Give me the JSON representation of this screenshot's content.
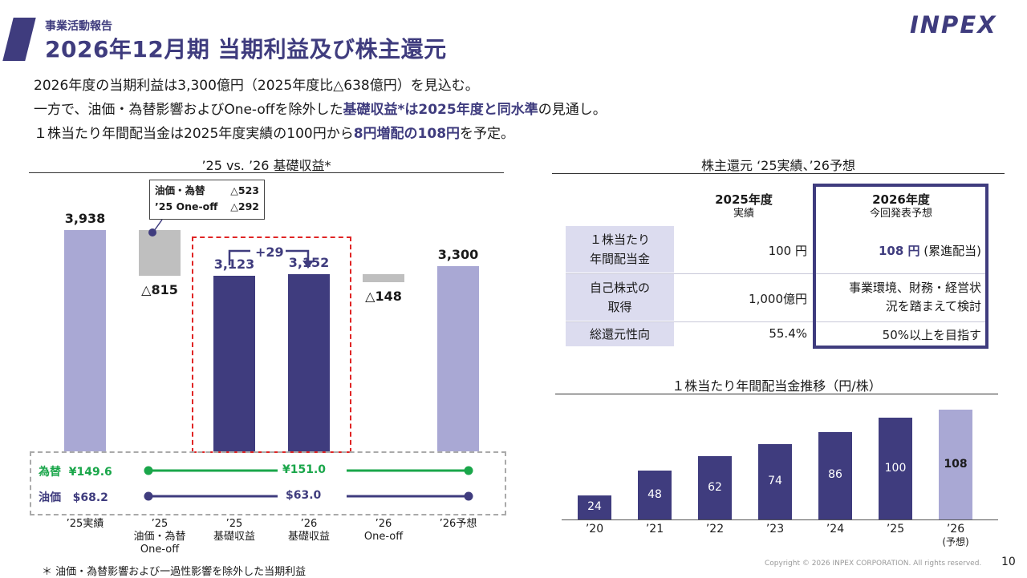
{
  "header": {
    "section_label": "事業活動報告",
    "page_title": "2026年12月期 当期利益及び株主還元",
    "logo_text": "INPEX"
  },
  "intro": {
    "line1": "2026年度の当期利益は3,300億円（2025年度比△638億円）を見込む。",
    "line2_a": "一方で、油価・為替影響およびOne-offを除外した",
    "line2_b": "基礎収益*は2025年度と同水準",
    "line2_c": "の見通し。",
    "line3_a": "１株当たり年間配当金は2025年度実績の100円から",
    "line3_b": "8円増配の108円",
    "line3_c": "を予定。"
  },
  "colors": {
    "brand": "#3f3c7e",
    "light_bar": "#a9a8d4",
    "grey_bar": "#bfbfbf",
    "fx_green": "#1aa64a",
    "oil_navy": "#3f3c7e",
    "red_dash": "#e02525"
  },
  "chart_data": [
    {
      "type": "bar",
      "subtype": "waterfall",
      "title": "’25 vs. ’26 基礎収益*",
      "categories": [
        "’25実績",
        "’25\n油価・為替\nOne-off",
        "’25\n基礎収益",
        "’26\n基礎収益",
        "’26\nOne-off",
        "’26予想"
      ],
      "values": [
        3938,
        -815,
        3123,
        3152,
        -148,
        3300
      ],
      "value_labels": [
        "3,938",
        "△815",
        "3,123",
        "3,152",
        "△148",
        "3,300"
      ],
      "bar_kinds": [
        "total",
        "decrease",
        "core",
        "core",
        "decrease",
        "total"
      ],
      "delta_label": "+29",
      "annotation": {
        "row1_label": "油価・為替",
        "row1_value": "△523",
        "row2_label": "’25 One-off",
        "row2_value": "△292"
      },
      "ylim": [
        0,
        4200
      ],
      "assumptions": {
        "fx_label": "為替",
        "fx_2025": "¥149.6",
        "fx_2026": "¥151.0",
        "oil_label": "油価",
        "oil_2025": "$68.2",
        "oil_2026": "$63.0"
      }
    },
    {
      "type": "bar",
      "title": "１株当たり年間配当金推移（円/株）",
      "categories": [
        "’20",
        "’21",
        "’22",
        "’23",
        "’24",
        "’25",
        "’26\n(予想)"
      ],
      "values": [
        24,
        48,
        62,
        74,
        86,
        100,
        108
      ],
      "ylim": [
        0,
        115
      ]
    }
  ],
  "returns_table": {
    "title": "株主還元 ‘25実績、’26予想",
    "col_2025": "2025年度",
    "col_2025_sub": "実績",
    "col_2026": "2026年度",
    "col_2026_sub": "今回発表予想",
    "rows": [
      {
        "label_1": "１株当たり",
        "label_2": "年間配当金",
        "v2025": "100 円",
        "v2026_a": "108 円",
        "v2026_b": " (累進配当)"
      },
      {
        "label_1": "自己株式の",
        "label_2": "取得",
        "v2025": "1,000億円",
        "v2026_a": "事業環境、財務・経営状",
        "v2026_b": "況を踏まえて検討"
      },
      {
        "label_1": "総還元性向",
        "label_2": "",
        "v2025": "55.4%",
        "v2026_a": "50%以上を目指す",
        "v2026_b": ""
      }
    ]
  },
  "footer": {
    "note": "＊ 油価・為替影響および一過性影響を除外した当期利益",
    "copyright": "Copyright © 2026 INPEX CORPORATION. All rights reserved.",
    "page_number": "10"
  }
}
